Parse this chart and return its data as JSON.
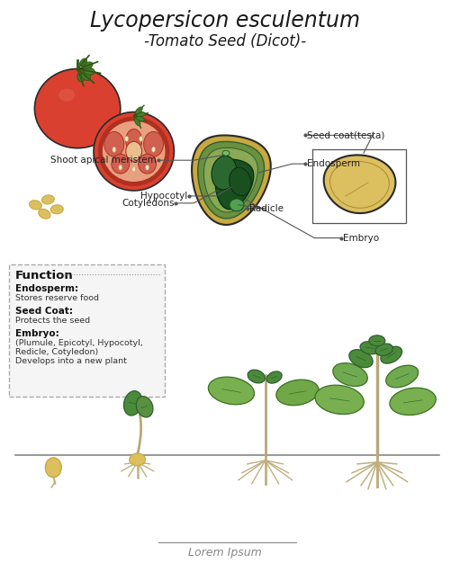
{
  "title1": "Lycopersicon esculentum",
  "title2": "-Tomato Seed (Dicot)-",
  "bg_color": "#ffffff",
  "function_title": "Function",
  "function_items": [
    {
      "label": "Endosperm:",
      "text": "Stores reserve food"
    },
    {
      "label": "Seed Coat:",
      "text": "Protects the seed"
    },
    {
      "label": "Embryo:",
      "text": "(Plumule, Epicotyl, Hypocotyl,\nRedicle, Cotyledon)\nDevelops into a new plant"
    }
  ],
  "labels": {
    "seed_coat": "Seed coat(testa)",
    "endosperm": "Endosperm",
    "shoot_apical": "Shoot apical meristem",
    "hypocotyl": "Hypocotyl",
    "cotyledons": "Cotyledons",
    "radicle": "Radicle",
    "embryo": "Embryo"
  },
  "footer": "Lorem Ipsum",
  "colors": {
    "tomato_red": "#d94030",
    "tomato_dark": "#b03020",
    "tomato_med": "#c85040",
    "tomato_light": "#e87060",
    "tomato_pink": "#e8a080",
    "tomato_inner": "#d06050",
    "green_calyx": "#4a7a30",
    "green_calyx_dark": "#2a5a10",
    "green_dark": "#2d6030",
    "green_mid": "#4a8a3a",
    "green_light": "#70aa50",
    "green_pale": "#90c060",
    "seed_tan": "#c8a840",
    "seed_tan_light": "#dcc060",
    "seed_tan_dark": "#a88830",
    "endosperm_green": "#6a9040",
    "endosperm_light": "#8aaa55",
    "embryo_dark": "#1a5020",
    "embryo_mid": "#2a6830",
    "embryo_light": "#3a8040",
    "outline": "#2a2a2a",
    "stem_color": "#b8a878",
    "root_color": "#c0b080",
    "label_line": "#555555"
  }
}
